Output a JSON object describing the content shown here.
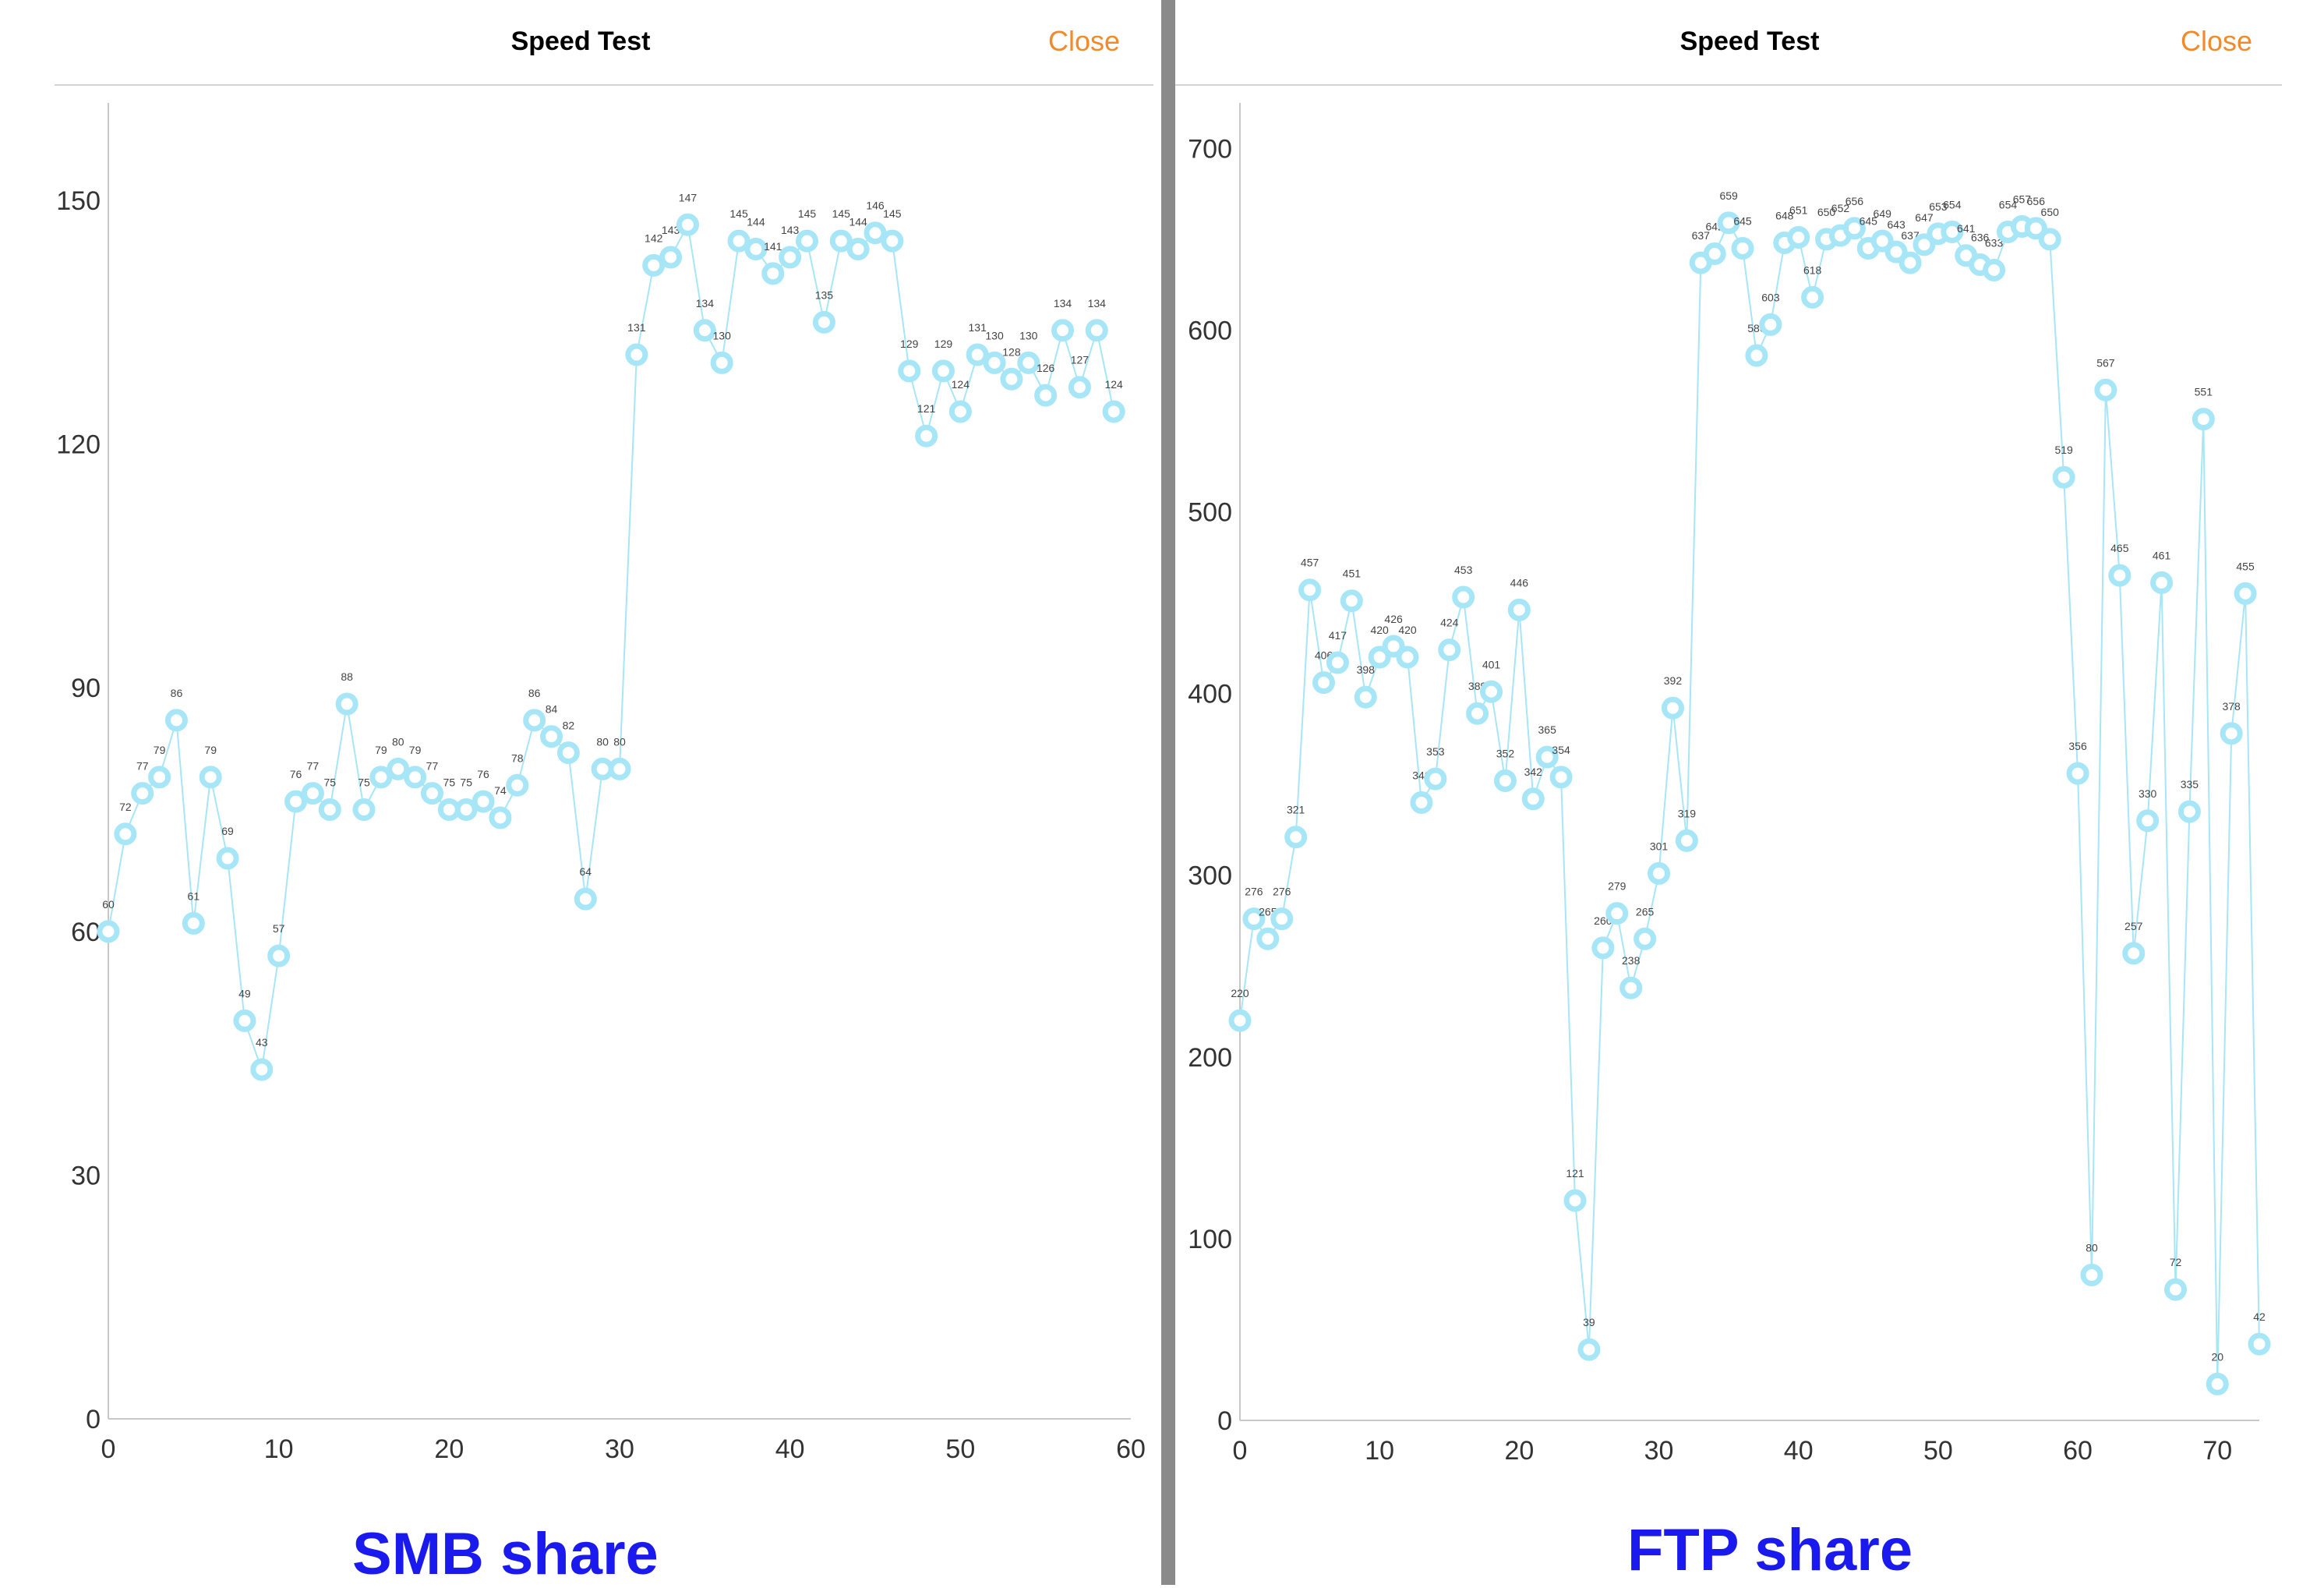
{
  "chart_data": [
    {
      "type": "line",
      "header": {
        "title": "Speed Test",
        "close_label": "Close"
      },
      "caption": "SMB share",
      "xlim": [
        0,
        60
      ],
      "ylim": [
        0,
        162
      ],
      "xticks": [
        0,
        10,
        20,
        30,
        40,
        50,
        60
      ],
      "yticks": [
        0,
        30,
        60,
        90,
        120,
        150
      ],
      "grid": false,
      "marker_color": "#a6e6f7",
      "x": [
        0,
        1,
        2,
        3,
        4,
        5,
        6,
        7,
        8,
        9,
        10,
        11,
        12,
        13,
        14,
        15,
        16,
        17,
        18,
        19,
        20,
        21,
        22,
        23,
        24,
        25,
        26,
        27,
        28,
        29,
        30,
        31,
        32,
        33,
        34,
        35,
        36,
        37,
        38,
        39,
        40,
        41,
        42,
        43,
        44,
        45,
        46,
        47,
        48,
        49,
        50,
        51,
        52,
        53,
        54,
        55,
        56,
        57,
        58,
        59
      ],
      "values": [
        60,
        72,
        77,
        79,
        86,
        61,
        79,
        69,
        49,
        43,
        57,
        76,
        77,
        75,
        88,
        75,
        79,
        80,
        79,
        77,
        75,
        75,
        76,
        74,
        78,
        86,
        84,
        82,
        64,
        80,
        80,
        131,
        142,
        143,
        147,
        134,
        130,
        145,
        144,
        141,
        143,
        145,
        135,
        145,
        144,
        146,
        145,
        129,
        121,
        129,
        124,
        131,
        130,
        128,
        130,
        126,
        134,
        127,
        134,
        124
      ],
      "point_labels": [
        "60",
        "72",
        "77",
        "79",
        "86",
        "61",
        "79",
        "69",
        "49",
        "43",
        "57",
        "76",
        "77",
        "75",
        "88",
        "75",
        "79",
        "80",
        "79",
        "77",
        "75",
        "75",
        "76",
        "74",
        "78",
        "86",
        "84",
        "82",
        "64",
        "80",
        "80",
        "131",
        "142",
        "143",
        "147",
        "134",
        "130",
        "145",
        "144",
        "141",
        "143",
        "145",
        "135",
        "145",
        "144",
        "146",
        "145",
        "129",
        "121",
        "129",
        "124",
        "131",
        "130",
        "128",
        "130",
        "126",
        "134",
        "127",
        "134",
        "124"
      ]
    },
    {
      "type": "line",
      "header": {
        "title": "Speed Test",
        "close_label": "Close"
      },
      "caption": "FTP share",
      "xlim": [
        0,
        73
      ],
      "ylim": [
        0,
        725
      ],
      "xticks": [
        0,
        10,
        20,
        30,
        40,
        50,
        60,
        70
      ],
      "yticks": [
        0,
        100,
        200,
        300,
        400,
        500,
        600,
        700
      ],
      "grid": false,
      "marker_color": "#a6e6f7",
      "x": [
        0,
        1,
        2,
        3,
        4,
        5,
        6,
        7,
        8,
        9,
        10,
        11,
        12,
        13,
        14,
        15,
        16,
        17,
        18,
        19,
        20,
        21,
        22,
        23,
        24,
        25,
        26,
        27,
        28,
        29,
        30,
        31,
        32,
        33,
        34,
        35,
        36,
        37,
        38,
        39,
        40,
        41,
        42,
        43,
        44,
        45,
        46,
        47,
        48,
        49,
        50,
        51,
        52,
        53,
        54,
        55,
        56,
        57,
        58,
        59,
        60,
        61,
        62,
        63,
        64,
        65,
        66,
        67,
        68,
        69,
        70,
        71,
        72,
        73
      ],
      "values": [
        220,
        276,
        265,
        276,
        321,
        457,
        406,
        417,
        451,
        398,
        420,
        426,
        420,
        340,
        353,
        424,
        453,
        389,
        401,
        352,
        446,
        342,
        365,
        354,
        121,
        39,
        260,
        279,
        238,
        265,
        301,
        392,
        319,
        637,
        642,
        659,
        645,
        586,
        603,
        648,
        651,
        618,
        650,
        652,
        656,
        645,
        649,
        643,
        637,
        647,
        653,
        654,
        641,
        636,
        633,
        654,
        657,
        656,
        650,
        519,
        356,
        80,
        567,
        465,
        257,
        330,
        461,
        72,
        335,
        551,
        20,
        378,
        455,
        42
      ],
      "point_labels": [
        "220",
        "276",
        "265",
        "276",
        "321",
        "457",
        "406",
        "417",
        "451",
        "398",
        "420",
        "426",
        "420",
        "340",
        "353",
        "424",
        "453",
        "389",
        "401",
        "352",
        "446",
        "342",
        "365",
        "354",
        "121",
        "39",
        "260",
        "279",
        "238",
        "265",
        "301",
        "392",
        "319",
        "637",
        "642",
        "659",
        "645",
        "586",
        "603",
        "648",
        "651",
        "618",
        "650",
        "652",
        "656",
        "645",
        "649",
        "643",
        "637",
        "647",
        "653",
        "654",
        "641",
        "636",
        "633",
        "654",
        "657",
        "656",
        "650",
        "519",
        "356",
        "80",
        "567",
        "465",
        "257",
        "330",
        "461",
        "72",
        "335",
        "551",
        "20",
        "378",
        "455",
        "42"
      ]
    }
  ]
}
